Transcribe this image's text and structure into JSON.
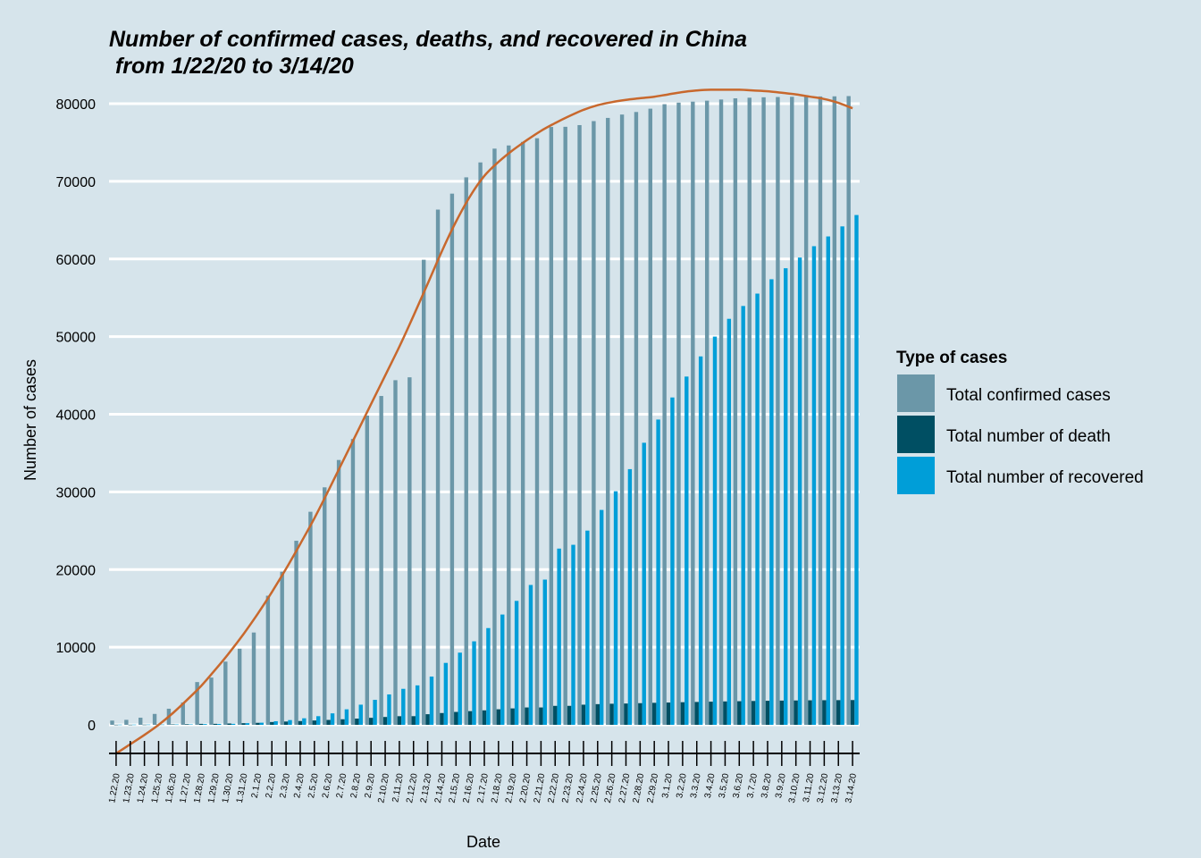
{
  "chart_data": {
    "type": "bar",
    "title": "Number of confirmed cases, deaths, and recovered in China",
    "subtitle": " from 1/22/20 to 3/14/20",
    "xlabel": "Date",
    "ylabel": "Number of cases",
    "ylim": [
      -3800,
      82000
    ],
    "yticks": [
      0,
      10000,
      20000,
      30000,
      40000,
      50000,
      60000,
      70000,
      80000
    ],
    "grid": "horizontal",
    "legend_title": "Type of cases",
    "legend_position": "right",
    "categories": [
      "1.22.20",
      "1.23.20",
      "1.24.20",
      "1.25.20",
      "1.26.20",
      "1.27.20",
      "1.28.20",
      "1.29.20",
      "1.30.20",
      "1.31.20",
      "2.1.20",
      "2.2.20",
      "2.3.20",
      "2.4.20",
      "2.5.20",
      "2.6.20",
      "2.7.20",
      "2.8.20",
      "2.9.20",
      "2.10.20",
      "2.11.20",
      "2.12.20",
      "2.13.20",
      "2.14.20",
      "2.15.20",
      "2.16.20",
      "2.17.20",
      "2.18.20",
      "2.19.20",
      "2.20.20",
      "2.21.20",
      "2.22.20",
      "2.23.20",
      "2.24.20",
      "2.25.20",
      "2.26.20",
      "2.27.20",
      "2.28.20",
      "2.29.20",
      "3.1.20",
      "3.2.20",
      "3.3.20",
      "3.4.20",
      "3.5.20",
      "3.6.20",
      "3.7.20",
      "3.8.20",
      "3.9.20",
      "3.10.20",
      "3.11.20",
      "3.12.20",
      "3.13.20",
      "3.14.20"
    ],
    "series": [
      {
        "name": "Total confirmed cases",
        "color": "#6b97a8",
        "values": [
          548,
          643,
          920,
          1406,
          2075,
          2877,
          5509,
          6087,
          8141,
          9802,
          11891,
          16630,
          19716,
          23707,
          27440,
          30587,
          34110,
          36814,
          39829,
          42354,
          44386,
          44759,
          59895,
          66358,
          68413,
          70513,
          72434,
          74211,
          74619,
          75077,
          75550,
          77001,
          77022,
          77241,
          77754,
          78166,
          78600,
          78928,
          79356,
          79932,
          80136,
          80261,
          80386,
          80537,
          80690,
          80770,
          80823,
          80860,
          80887,
          80921,
          80932,
          80945,
          80977
        ]
      },
      {
        "name": "Total number of death",
        "color": "#004f63",
        "values": [
          17,
          18,
          26,
          42,
          56,
          82,
          131,
          133,
          171,
          213,
          259,
          361,
          425,
          490,
          562,
          632,
          717,
          804,
          904,
          1011,
          1112,
          1117,
          1369,
          1521,
          1663,
          1766,
          1864,
          2003,
          2116,
          2238,
          2238,
          2443,
          2445,
          2595,
          2665,
          2717,
          2746,
          2790,
          2837,
          2872,
          2914,
          2947,
          2983,
          3015,
          3044,
          3072,
          3100,
          3123,
          3139,
          3161,
          3172,
          3180,
          3193
        ]
      },
      {
        "name": "Total number of recovered",
        "color": "#009ed8",
        "values": [
          28,
          30,
          36,
          39,
          49,
          58,
          101,
          120,
          135,
          214,
          275,
          463,
          614,
          843,
          1115,
          1477,
          1999,
          2596,
          3219,
          3918,
          4636,
          5082,
          6217,
          7977,
          9298,
          10755,
          12462,
          14206,
          15962,
          18014,
          18704,
          22699,
          23187,
          25015,
          27676,
          30084,
          32930,
          36329,
          39320,
          42162,
          44854,
          47450,
          50001,
          52292,
          53944,
          55539,
          57388,
          58804,
          60181,
          61644,
          62901,
          64196,
          65660
        ]
      }
    ],
    "trend": {
      "name": "smoothed trend of total confirmed cases",
      "color": "#c8682d",
      "values": [
        -3700,
        -2500,
        -1300,
        0,
        1500,
        3200,
        5000,
        7100,
        9300,
        11700,
        14300,
        17100,
        20100,
        23300,
        26600,
        30200,
        33900,
        37600,
        41300,
        45000,
        48700,
        52700,
        56800,
        61000,
        64800,
        68100,
        70700,
        72500,
        74000,
        75300,
        76500,
        77500,
        78400,
        79200,
        79800,
        80200,
        80500,
        80700,
        80900,
        81200,
        81500,
        81700,
        81800,
        81800,
        81800,
        81700,
        81600,
        81400,
        81200,
        80900,
        80600,
        80100,
        79400
      ]
    }
  }
}
